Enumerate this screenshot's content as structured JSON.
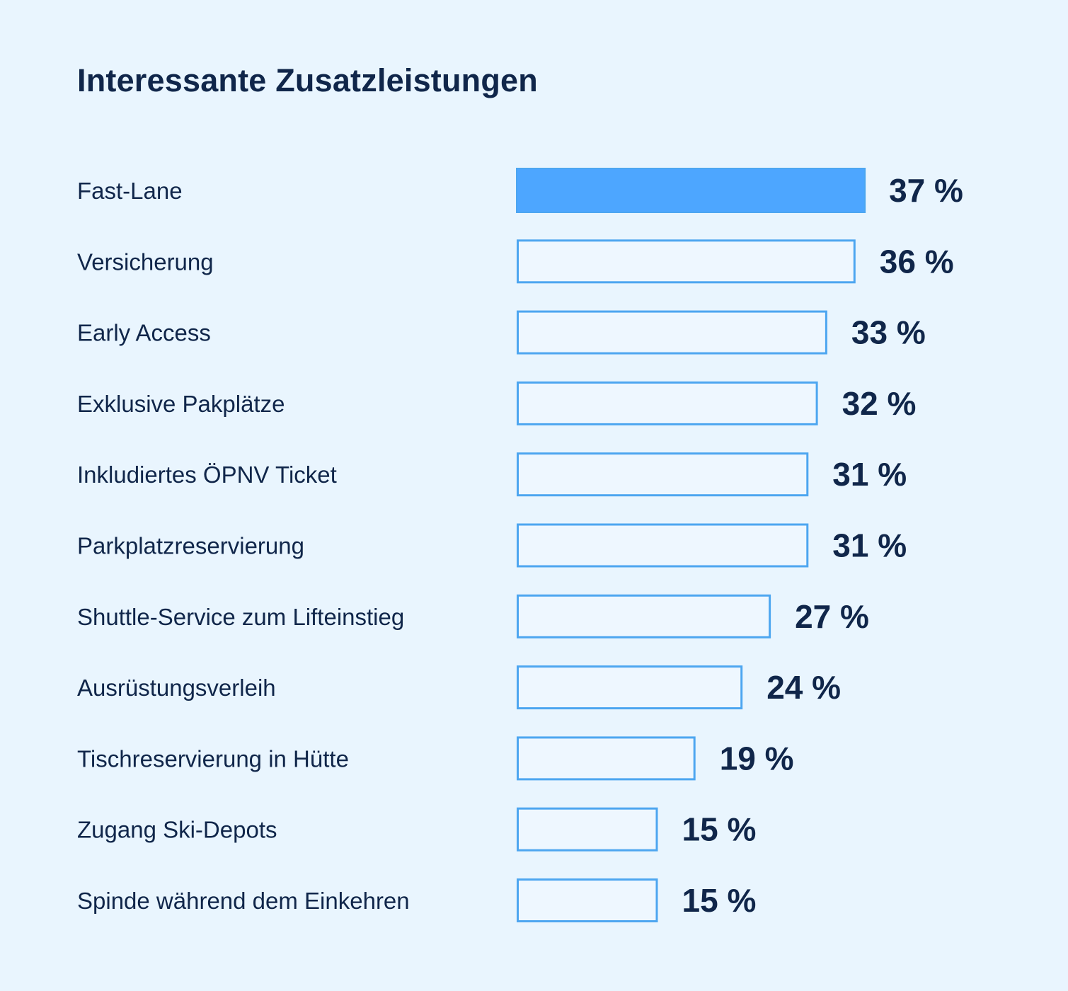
{
  "chart_data": {
    "type": "bar",
    "orientation": "horizontal",
    "title": "Interessante Zusatzleistungen",
    "categories": [
      "Fast-Lane",
      "Versicherung",
      "Early Access",
      "Exklusive Pakplätze",
      "Inkludiertes ÖPNV Ticket",
      "Parkplatzreservierung",
      "Shuttle-Service zum Lifteinstieg",
      "Ausrüstungsverleih",
      "Tischreservierung in Hütte",
      "Zugang Ski-Depots",
      "Spinde während dem Einkehren"
    ],
    "values": [
      37,
      36,
      33,
      32,
      31,
      31,
      27,
      24,
      19,
      15,
      15
    ],
    "value_labels": [
      "37 %",
      "36 %",
      "33 %",
      "32 %",
      "31 %",
      "31 %",
      "27 %",
      "24 %",
      "19 %",
      "15 %",
      "15 %"
    ],
    "highlight_index": 0,
    "xlabel": "",
    "ylabel": "",
    "grid": false,
    "colors": {
      "background": "#e9f5fe",
      "highlight_fill": "#4da6ff",
      "bar_outline": "#4da6f0",
      "bar_fill": "#eef7ff",
      "text": "#10264a"
    }
  }
}
